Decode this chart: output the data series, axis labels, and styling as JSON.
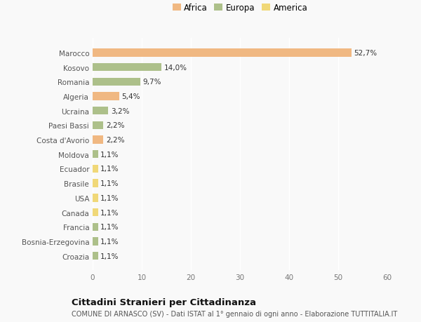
{
  "countries": [
    "Marocco",
    "Kosovo",
    "Romania",
    "Algeria",
    "Ucraina",
    "Paesi Bassi",
    "Costa d'Avorio",
    "Moldova",
    "Ecuador",
    "Brasile",
    "USA",
    "Canada",
    "Francia",
    "Bosnia-Erzegovina",
    "Croazia"
  ],
  "values": [
    52.7,
    14.0,
    9.7,
    5.4,
    3.2,
    2.2,
    2.2,
    1.1,
    1.1,
    1.1,
    1.1,
    1.1,
    1.1,
    1.1,
    1.1
  ],
  "labels": [
    "52,7%",
    "14,0%",
    "9,7%",
    "5,4%",
    "3,2%",
    "2,2%",
    "2,2%",
    "1,1%",
    "1,1%",
    "1,1%",
    "1,1%",
    "1,1%",
    "1,1%",
    "1,1%",
    "1,1%"
  ],
  "colors": [
    "#f0b882",
    "#adc08a",
    "#adc08a",
    "#f0b882",
    "#adc08a",
    "#adc08a",
    "#f0b882",
    "#adc08a",
    "#f0d878",
    "#f0d878",
    "#f0d878",
    "#f0d878",
    "#adc08a",
    "#adc08a",
    "#adc08a"
  ],
  "legend": [
    {
      "label": "Africa",
      "color": "#f0b882"
    },
    {
      "label": "Europa",
      "color": "#adc08a"
    },
    {
      "label": "America",
      "color": "#f0d878"
    }
  ],
  "xlim": [
    0,
    60
  ],
  "xticks": [
    0,
    10,
    20,
    30,
    40,
    50,
    60
  ],
  "title": "Cittadini Stranieri per Cittadinanza",
  "subtitle": "COMUNE DI ARNASCO (SV) - Dati ISTAT al 1° gennaio di ogni anno - Elaborazione TUTTITALIA.IT",
  "bg_color": "#f9f9f9",
  "bar_height": 0.55,
  "label_fontsize": 7.5,
  "tick_fontsize": 7.5,
  "legend_fontsize": 8.5,
  "title_fontsize": 9.5,
  "subtitle_fontsize": 7.0
}
